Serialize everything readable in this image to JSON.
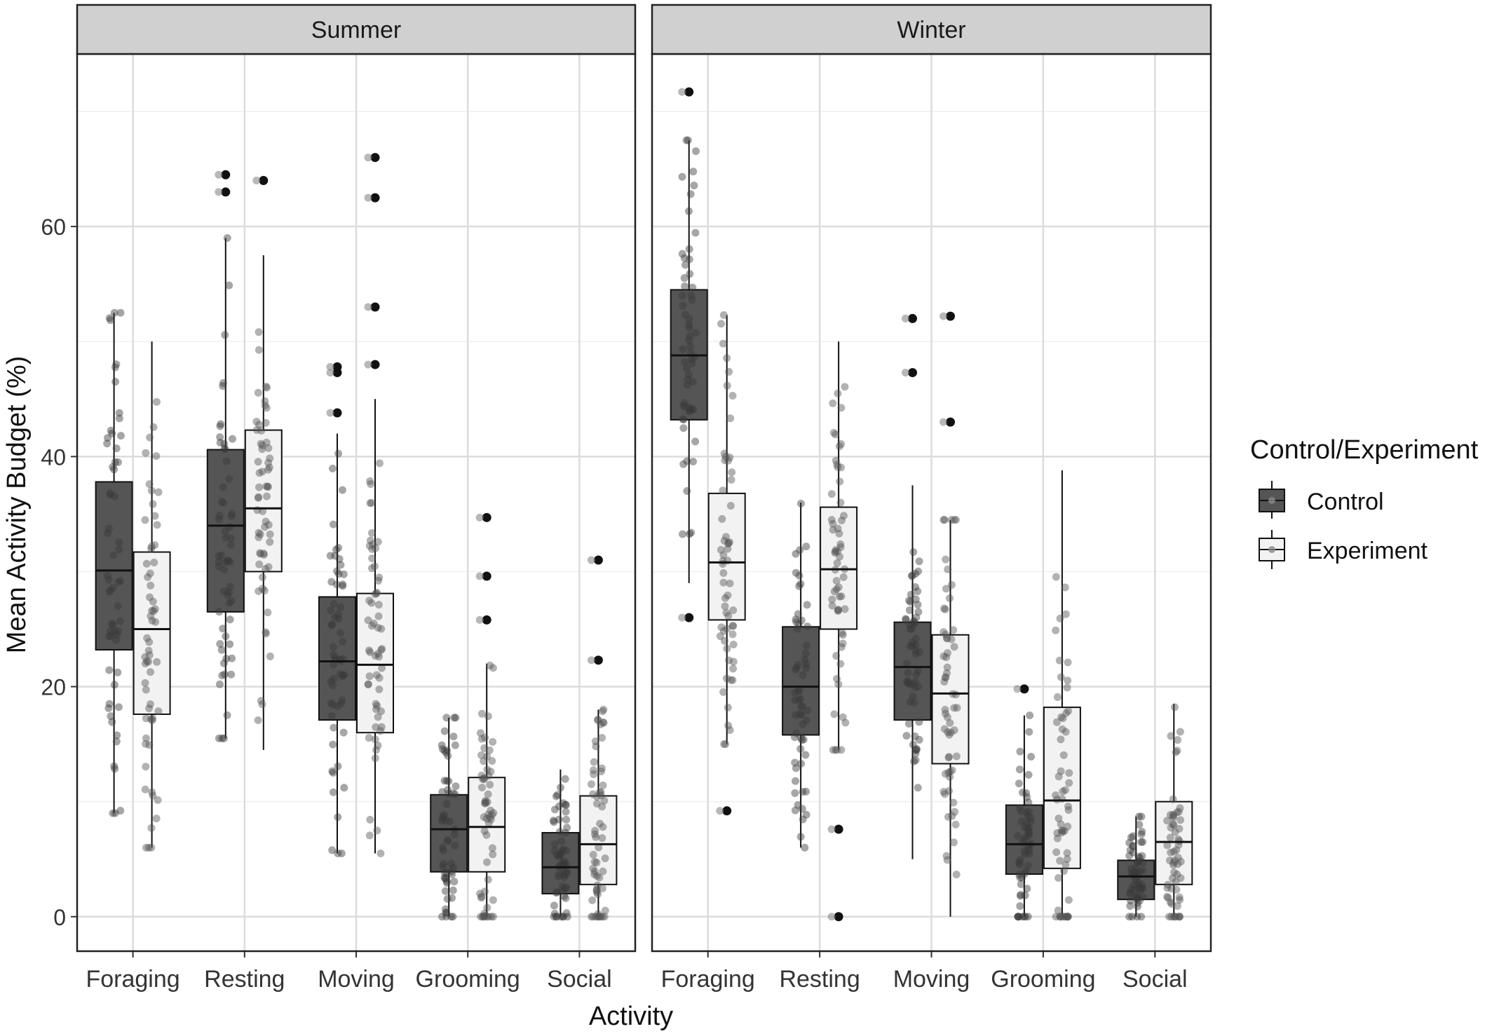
{
  "chart_data": {
    "type": "boxplot",
    "ylabel": "Mean Activity Budget (%)",
    "xlabel": "Activity",
    "ylim": [
      -3,
      75
    ],
    "yticks": [
      0,
      20,
      40,
      60
    ],
    "grid": true,
    "categories": [
      "Foraging",
      "Resting",
      "Moving",
      "Grooming",
      "Social"
    ],
    "legend": {
      "title": "Control/Experiment",
      "position": "right",
      "entries": [
        {
          "name": "Control",
          "fill": "#555555"
        },
        {
          "name": "Experiment",
          "fill": "#f2f2f2"
        }
      ]
    },
    "panels": [
      {
        "title": "Summer",
        "groups": [
          {
            "category": "Foraging",
            "control": {
              "min": 9,
              "q1": 23.2,
              "median": 30.1,
              "q3": 37.8,
              "max": 52.5,
              "outliers": []
            },
            "experiment": {
              "min": 6,
              "q1": 17.6,
              "median": 25,
              "q3": 31.7,
              "max": 50,
              "outliers": []
            }
          },
          {
            "category": "Resting",
            "control": {
              "min": 15.5,
              "q1": 26.5,
              "median": 34,
              "q3": 40.6,
              "max": 59,
              "outliers": [
                63,
                64.5
              ]
            },
            "experiment": {
              "min": 14.5,
              "q1": 30,
              "median": 35.5,
              "q3": 42.3,
              "max": 57.5,
              "outliers": [
                64
              ]
            }
          },
          {
            "category": "Moving",
            "control": {
              "min": 5.5,
              "q1": 17.1,
              "median": 22.2,
              "q3": 27.8,
              "max": 42,
              "outliers": [
                43.8,
                47.3,
                47.8
              ]
            },
            "experiment": {
              "min": 5.5,
              "q1": 16,
              "median": 21.9,
              "q3": 28.1,
              "max": 45,
              "outliers": [
                48,
                53,
                62.5,
                66
              ]
            }
          },
          {
            "category": "Grooming",
            "control": {
              "min": 0,
              "q1": 3.9,
              "median": 7.6,
              "q3": 10.6,
              "max": 17.3,
              "outliers": []
            },
            "experiment": {
              "min": 0,
              "q1": 3.9,
              "median": 7.8,
              "q3": 12.1,
              "max": 22,
              "outliers": [
                25.8,
                29.6,
                34.7
              ]
            }
          },
          {
            "category": "Social",
            "control": {
              "min": 0,
              "q1": 2,
              "median": 4.3,
              "q3": 7.3,
              "max": 12.8,
              "outliers": []
            },
            "experiment": {
              "min": 0,
              "q1": 2.8,
              "median": 6.3,
              "q3": 10.5,
              "max": 18,
              "outliers": [
                22.3,
                31
              ]
            }
          }
        ]
      },
      {
        "title": "Winter",
        "groups": [
          {
            "category": "Foraging",
            "control": {
              "min": 29,
              "q1": 43.2,
              "median": 48.8,
              "q3": 54.5,
              "max": 67.5,
              "outliers": [
                26,
                71.7
              ]
            },
            "experiment": {
              "min": 15,
              "q1": 25.8,
              "median": 30.8,
              "q3": 36.8,
              "max": 52.3,
              "outliers": [
                9.2
              ]
            }
          },
          {
            "category": "Resting",
            "control": {
              "min": 6,
              "q1": 15.8,
              "median": 20,
              "q3": 25.2,
              "max": 36,
              "outliers": []
            },
            "experiment": {
              "min": 14.5,
              "q1": 25,
              "median": 30.2,
              "q3": 35.6,
              "max": 50,
              "outliers": [
                0,
                7.6
              ]
            }
          },
          {
            "category": "Moving",
            "control": {
              "min": 5,
              "q1": 17.1,
              "median": 21.7,
              "q3": 25.6,
              "max": 37.5,
              "outliers": [
                47.3,
                52
              ]
            },
            "experiment": {
              "min": 0,
              "q1": 13.3,
              "median": 19.4,
              "q3": 24.5,
              "max": 34.5,
              "outliers": [
                43,
                52.2
              ]
            }
          },
          {
            "category": "Grooming",
            "control": {
              "min": 0,
              "q1": 3.7,
              "median": 6.3,
              "q3": 9.7,
              "max": 17.5,
              "outliers": [
                19.8
              ]
            },
            "experiment": {
              "min": 0,
              "q1": 4.2,
              "median": 10.1,
              "q3": 18.2,
              "max": 38.8,
              "outliers": []
            }
          },
          {
            "category": "Social",
            "control": {
              "min": 0,
              "q1": 1.5,
              "median": 3.5,
              "q3": 4.9,
              "max": 8.7,
              "outliers": []
            },
            "experiment": {
              "min": 0,
              "q1": 2.8,
              "median": 6.5,
              "q3": 10,
              "max": 18.5,
              "outliers": []
            }
          }
        ]
      }
    ]
  }
}
